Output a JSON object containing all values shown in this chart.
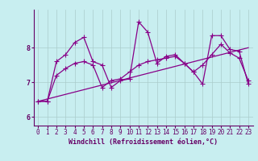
{
  "xlabel": "Windchill (Refroidissement éolien,°C)",
  "bg_color": "#c8eef0",
  "line_color": "#880088",
  "grid_color": "#aacccc",
  "axis_color": "#660066",
  "spine_color": "#660066",
  "xlim": [
    -0.5,
    23.5
  ],
  "ylim": [
    5.75,
    9.1
  ],
  "yticks": [
    6,
    7,
    8
  ],
  "xticks": [
    0,
    1,
    2,
    3,
    4,
    5,
    6,
    7,
    8,
    9,
    10,
    11,
    12,
    13,
    14,
    15,
    16,
    17,
    18,
    19,
    20,
    21,
    22,
    23
  ],
  "series1_x": [
    0,
    1,
    2,
    3,
    4,
    5,
    6,
    7,
    8,
    9,
    10,
    11,
    12,
    13,
    14,
    15,
    16,
    17,
    18,
    19,
    20,
    21,
    22,
    23
  ],
  "series1_y": [
    6.45,
    6.45,
    7.6,
    7.8,
    8.15,
    8.3,
    7.6,
    7.5,
    6.85,
    7.05,
    7.1,
    8.75,
    8.45,
    7.55,
    7.75,
    7.8,
    7.55,
    7.3,
    6.95,
    8.35,
    8.35,
    7.95,
    7.9,
    6.95
  ],
  "series2_x": [
    0,
    1,
    2,
    3,
    4,
    5,
    6,
    7,
    8,
    9,
    10,
    11,
    12,
    13,
    14,
    15,
    16,
    17,
    18,
    19,
    20,
    21,
    22,
    23
  ],
  "series2_y": [
    6.45,
    6.45,
    7.2,
    7.4,
    7.55,
    7.6,
    7.5,
    6.85,
    7.05,
    7.1,
    7.3,
    7.5,
    7.6,
    7.65,
    7.7,
    7.75,
    7.55,
    7.3,
    7.5,
    7.8,
    8.1,
    7.85,
    7.7,
    7.05
  ],
  "trend_x": [
    0,
    23
  ],
  "trend_y": [
    6.45,
    8.0
  ],
  "marker_size": 2.5,
  "line_width": 0.9,
  "tick_fontsize": 5.5,
  "label_fontsize": 6.0
}
